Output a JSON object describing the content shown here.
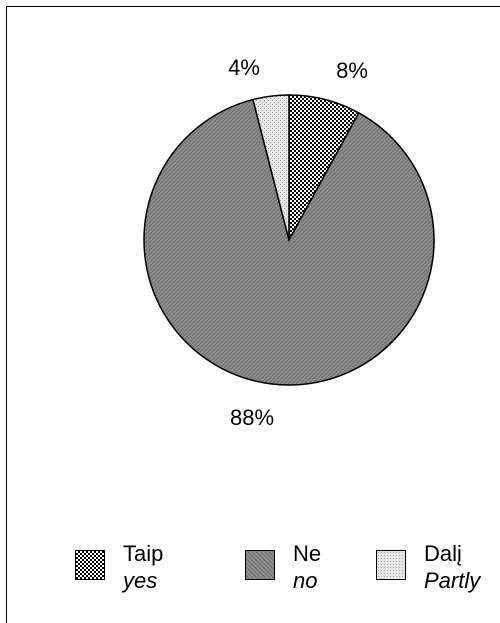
{
  "chart_data": {
    "type": "pie",
    "title": "",
    "categories": [
      "Taip",
      "Ne",
      "Dalį"
    ],
    "values": [
      8,
      88,
      4
    ],
    "value_labels": [
      "8%",
      "88%",
      "4%"
    ],
    "slice_fills": [
      "dotted",
      "dark-hatched",
      "light-dotted"
    ],
    "legend": [
      {
        "label": "Taip",
        "translation": "yes",
        "fill": "dotted"
      },
      {
        "label": "Ne",
        "translation": "no",
        "fill": "dark-hatched"
      },
      {
        "label": "Dalį",
        "translation": "Partly",
        "fill": "light-dotted"
      }
    ],
    "legend_placement": "bottom"
  },
  "colors": {
    "dotted_bg": "#ffffff",
    "dotted_dot": "#000000",
    "dark_bg": "#8c8c8c",
    "dark_line": "#6f6f6f",
    "light_bg": "#e6e6e6",
    "light_dot": "#a8a8a8",
    "outline": "#000000"
  }
}
